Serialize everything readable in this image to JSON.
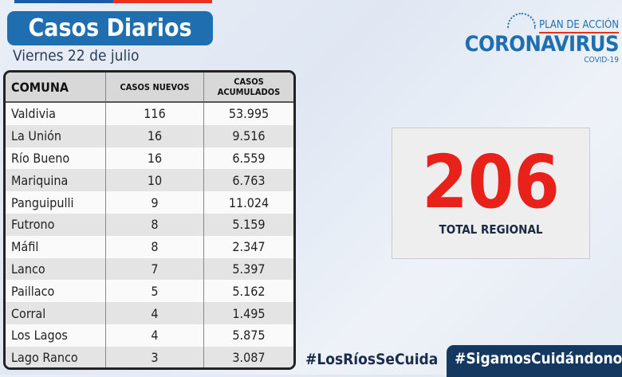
{
  "header": {
    "title": "Casos Diarios",
    "date": "Viernes 22 de julio"
  },
  "logo": {
    "plan": "PLAN DE ACCIÓN",
    "name": "CORONAVIRUS",
    "sub": "COVID-19"
  },
  "table": {
    "columns": [
      "COMUNA",
      "CASOS NUEVOS",
      "CASOS ACUMULADOS"
    ],
    "rows": [
      [
        "Valdivia",
        "116",
        "53.995"
      ],
      [
        "La Unión",
        "16",
        "9.516"
      ],
      [
        "Río Bueno",
        "16",
        "6.559"
      ],
      [
        "Mariquina",
        "10",
        "6.763"
      ],
      [
        "Panguipulli",
        "9",
        "11.024"
      ],
      [
        "Futrono",
        "8",
        "5.159"
      ],
      [
        "Máfil",
        "8",
        "2.347"
      ],
      [
        "Lanco",
        "7",
        "5.397"
      ],
      [
        "Paillaco",
        "5",
        "5.162"
      ],
      [
        "Corral",
        "4",
        "1.495"
      ],
      [
        "Los Lagos",
        "4",
        "5.875"
      ],
      [
        "Lago Ranco",
        "3",
        "3.087"
      ]
    ]
  },
  "total": {
    "value": "206",
    "label": "TOTAL REGIONAL"
  },
  "hashtags": [
    "#LosRíosSeCuida",
    "#SigamosCuidándonos"
  ],
  "colors": {
    "accent": "#1f6fb0",
    "red": "#e8221b",
    "navy": "#14385f"
  }
}
